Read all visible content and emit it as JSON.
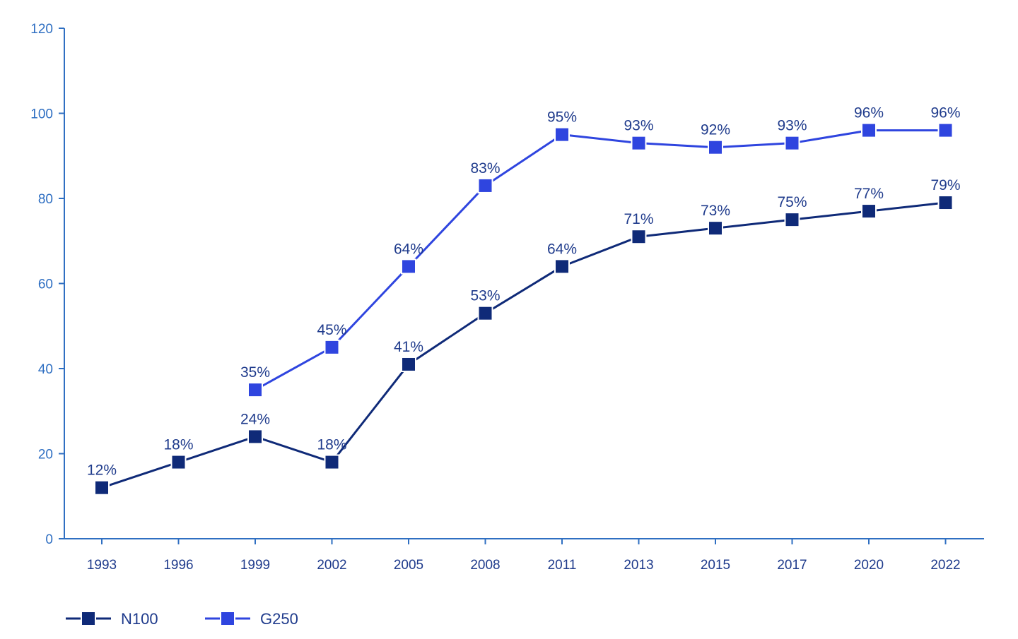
{
  "chart_data": {
    "type": "line",
    "title": "",
    "xlabel": "",
    "ylabel": "",
    "ylim": [
      0,
      120
    ],
    "yticks": [
      0,
      20,
      40,
      60,
      80,
      100,
      120
    ],
    "grid": false,
    "legend_position": "bottom-left",
    "categories": [
      "1993",
      "1996",
      "1999",
      "2002",
      "2005",
      "2008",
      "2011",
      "2013",
      "2015",
      "2017",
      "2020",
      "2022"
    ],
    "series": [
      {
        "name": "N100",
        "color": "#0f2a78",
        "values": [
          12,
          18,
          24,
          18,
          41,
          53,
          64,
          71,
          73,
          75,
          77,
          79
        ],
        "labels": [
          "12%",
          "18%",
          "24%",
          "18%",
          "41%",
          "53%",
          "64%",
          "71%",
          "73%",
          "75%",
          "77%",
          "79%"
        ]
      },
      {
        "name": "G250",
        "color": "#2f45df",
        "values": [
          null,
          null,
          35,
          45,
          64,
          83,
          95,
          93,
          92,
          93,
          96,
          96
        ],
        "labels": [
          "",
          "",
          "35%",
          "45%",
          "64%",
          "83%",
          "95%",
          "93%",
          "92%",
          "93%",
          "96%",
          "96%"
        ]
      }
    ],
    "colors": {
      "axis": "#2f6fc2",
      "label_text": "#1f3b8c"
    }
  }
}
